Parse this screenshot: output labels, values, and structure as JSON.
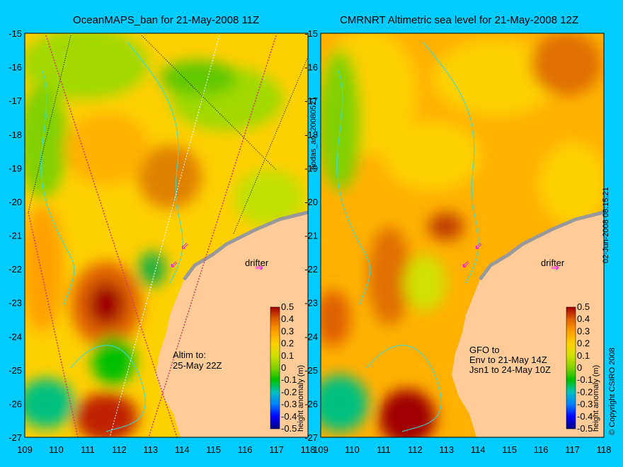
{
  "titles": {
    "left": "OceanMAPS_ban for 21-May-2008 11Z",
    "right": "CMRNRT Altimetric sea level  for 21-May-2008 12Z"
  },
  "axes": {
    "lat_labels": [
      "-15",
      "-16",
      "-17",
      "-18",
      "-19",
      "-20",
      "-21",
      "-22",
      "-23",
      "-24",
      "-25",
      "-26",
      "-27"
    ],
    "lon_labels": [
      "109",
      "110",
      "111",
      "112",
      "113",
      "114",
      "115",
      "116",
      "117",
      "118"
    ]
  },
  "left_panel": {
    "drifter_label": "drifter",
    "altim_text_1": "Altim to:",
    "altim_text_2": "25-May 22Z"
  },
  "right_panel": {
    "drifter_label": "drifter",
    "gfo_text_1": "GFO to",
    "gfo_text_2": "Env to 21-May 14Z",
    "gfo_text_3": "Jsn1 to 24-May 10Z"
  },
  "colorbar": {
    "ticks": [
      "0.5",
      "0.4",
      "0.3",
      "0.2",
      "0.1",
      "0",
      "-0.1",
      "-0.2",
      "-0.3",
      "-0.4",
      "-0.5"
    ],
    "label": "height anomaly (m)",
    "colors": [
      "#000080",
      "#0000ff",
      "#0080ff",
      "#00c0c0",
      "#00c000",
      "#80d000",
      "#d0e000",
      "#ffd000",
      "#ffa000",
      "#e06000",
      "#a00000"
    ]
  },
  "side_id": "bodas_an_20080521",
  "timestamp": "02-Jun-2008 08:15:21",
  "copyright": "© Copyright CSIRO 2008",
  "colors": {
    "background": "#00ccff",
    "land": "#ffcc99",
    "coastline_cyan": "#33dddd",
    "drifter_marker": "#ff00ff"
  }
}
